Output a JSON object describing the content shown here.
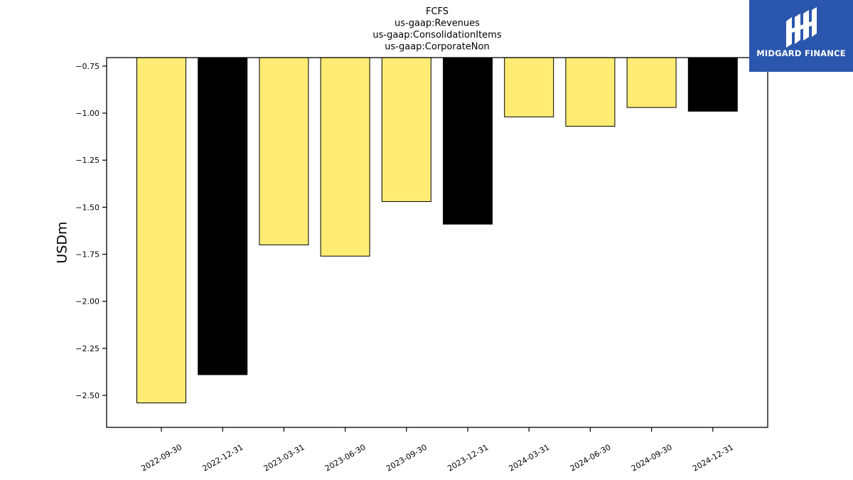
{
  "brand": {
    "name": "MIDGARD FINANCE",
    "bg_color": "#2a57ad"
  },
  "chart_data": {
    "type": "bar",
    "title": [
      "FCFS",
      "us-gaap:Revenues",
      "us-gaap:ConsolidationItems",
      "us-gaap:CorporateNon"
    ],
    "xlabel": "",
    "ylabel": "USDm",
    "categories": [
      "2022-09-30",
      "2022-12-31",
      "2023-03-31",
      "2023-06-30",
      "2023-09-30",
      "2023-12-31",
      "2024-03-31",
      "2024-06-30",
      "2024-09-30",
      "2024-12-31"
    ],
    "values": [
      -2.54,
      -2.39,
      -1.7,
      -1.76,
      -1.47,
      -1.59,
      -1.02,
      -1.07,
      -0.97,
      -0.99
    ],
    "bar_colors": [
      "#feec74",
      "#000000",
      "#feec74",
      "#feec74",
      "#feec74",
      "#000000",
      "#feec74",
      "#feec74",
      "#feec74",
      "#000000"
    ],
    "ylim": [
      -2.67,
      -0.705
    ],
    "yticks": [
      -0.75,
      -1.0,
      -1.25,
      -1.5,
      -1.75,
      -2.0,
      -2.25,
      -2.5
    ],
    "ytick_labels": [
      "−0.75",
      "−1.00",
      "−1.25",
      "−1.50",
      "−1.75",
      "−2.00",
      "−2.25",
      "−2.50"
    ],
    "grid": false,
    "legend": "none"
  }
}
